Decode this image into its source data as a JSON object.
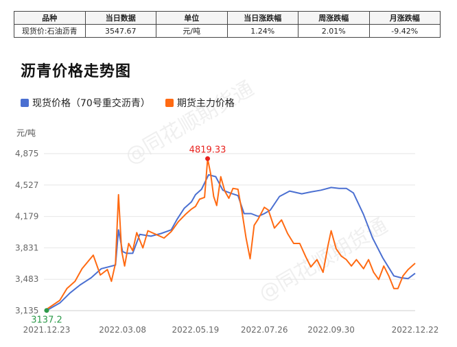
{
  "summary_table": {
    "headers": [
      "品种",
      "当日数据",
      "单位",
      "当日涨跌幅",
      "周涨跌幅",
      "月涨跌幅"
    ],
    "row": [
      "现货价:石油沥青",
      "3547.67",
      "元/吨",
      "1.24%",
      "2.01%",
      "-9.42%"
    ]
  },
  "watermark": "@同花顺期货通",
  "colors": {
    "spot": "#4a6fd1",
    "futures": "#ff6a12",
    "max": "#e8211d",
    "min": "#2d9a4a"
  },
  "chart_data": {
    "type": "line",
    "title": "沥青价格走势图",
    "ylabel": "元/吨",
    "ylim": [
      3135,
      4875
    ],
    "y_ticks": [
      "3,135",
      "3,483",
      "3,831",
      "4,179",
      "4,527",
      "4,875"
    ],
    "x_ticks": [
      "2021.12.23",
      "2022.03.08",
      "2022.05.19",
      "2022.07.26",
      "2022.09.30",
      "2022.12.22"
    ],
    "legend_position": "top-left",
    "annotations": [
      {
        "label": "4819.33",
        "x": "2022.05.31",
        "y": 4819.33,
        "kind": "max",
        "series": "期货主力价格"
      },
      {
        "label": "3137.2",
        "x": "2021.12.23",
        "y": 3137.2,
        "kind": "min",
        "series": "现货价格（70号重交沥青）"
      }
    ],
    "series": [
      {
        "name": "现货价格（70号重交沥青）",
        "x": [
          "2021.12.23",
          "2022.01.05",
          "2022.01.15",
          "2022.01.25",
          "2022.02.05",
          "2022.02.15",
          "2022.02.22",
          "2022.03.01",
          "2022.03.04",
          "2022.03.08",
          "2022.03.12",
          "2022.03.18",
          "2022.03.25",
          "2022.04.05",
          "2022.04.15",
          "2022.04.25",
          "2022.05.01",
          "2022.05.08",
          "2022.05.15",
          "2022.05.19",
          "2022.05.25",
          "2022.06.01",
          "2022.06.08",
          "2022.06.15",
          "2022.06.22",
          "2022.06.30",
          "2022.07.06",
          "2022.07.13",
          "2022.07.20",
          "2022.07.26",
          "2022.08.01",
          "2022.08.10",
          "2022.08.20",
          "2022.09.01",
          "2022.09.10",
          "2022.09.20",
          "2022.09.30",
          "2022.10.08",
          "2022.10.15",
          "2022.10.22",
          "2022.11.01",
          "2022.11.10",
          "2022.11.20",
          "2022.12.01",
          "2022.12.08",
          "2022.12.15",
          "2022.12.22"
        ],
        "values": [
          3137,
          3220,
          3330,
          3420,
          3500,
          3600,
          3620,
          3640,
          4030,
          3790,
          3770,
          3770,
          3980,
          3960,
          3990,
          4030,
          4150,
          4270,
          4340,
          4420,
          4480,
          4640,
          4620,
          4470,
          4440,
          4410,
          4210,
          4210,
          4180,
          4210,
          4250,
          4400,
          4460,
          4430,
          4450,
          4470,
          4500,
          4490,
          4490,
          4440,
          4200,
          3940,
          3720,
          3520,
          3500,
          3490,
          3548
        ]
      },
      {
        "name": "期货主力价格",
        "x": [
          "2021.12.23",
          "2022.01.05",
          "2022.01.12",
          "2022.01.20",
          "2022.01.27",
          "2022.02.07",
          "2022.02.14",
          "2022.02.21",
          "2022.02.25",
          "2022.03.01",
          "2022.03.04",
          "2022.03.07",
          "2022.03.10",
          "2022.03.14",
          "2022.03.18",
          "2022.03.22",
          "2022.03.28",
          "2022.04.02",
          "2022.04.10",
          "2022.04.18",
          "2022.04.25",
          "2022.05.02",
          "2022.05.09",
          "2022.05.15",
          "2022.05.19",
          "2022.05.23",
          "2022.05.28",
          "2022.05.31",
          "2022.06.03",
          "2022.06.06",
          "2022.06.09",
          "2022.06.13",
          "2022.06.17",
          "2022.06.21",
          "2022.06.25",
          "2022.06.30",
          "2022.07.04",
          "2022.07.08",
          "2022.07.12",
          "2022.07.16",
          "2022.07.20",
          "2022.07.26",
          "2022.07.30",
          "2022.08.05",
          "2022.08.12",
          "2022.08.18",
          "2022.08.24",
          "2022.08.30",
          "2022.09.05",
          "2022.09.10",
          "2022.09.16",
          "2022.09.22",
          "2022.09.27",
          "2022.09.30",
          "2022.10.05",
          "2022.10.10",
          "2022.10.15",
          "2022.10.20",
          "2022.10.25",
          "2022.11.01",
          "2022.11.06",
          "2022.11.11",
          "2022.11.16",
          "2022.11.21",
          "2022.11.26",
          "2022.12.01",
          "2022.12.05",
          "2022.12.10",
          "2022.12.15",
          "2022.12.22"
        ],
        "values": [
          3150,
          3250,
          3380,
          3460,
          3600,
          3750,
          3530,
          3590,
          3460,
          3660,
          4420,
          3800,
          3630,
          3880,
          3800,
          4000,
          3830,
          4020,
          3980,
          3940,
          4010,
          4120,
          4200,
          4260,
          4290,
          4370,
          4390,
          4819.33,
          4650,
          4400,
          4300,
          4620,
          4460,
          4380,
          4490,
          4480,
          4230,
          3940,
          3710,
          4080,
          4150,
          4280,
          4250,
          4050,
          4140,
          3990,
          3880,
          3880,
          3730,
          3620,
          3700,
          3560,
          3860,
          4020,
          3820,
          3740,
          3700,
          3630,
          3700,
          3600,
          3700,
          3560,
          3480,
          3630,
          3520,
          3380,
          3380,
          3520,
          3590,
          3660
        ]
      }
    ]
  }
}
